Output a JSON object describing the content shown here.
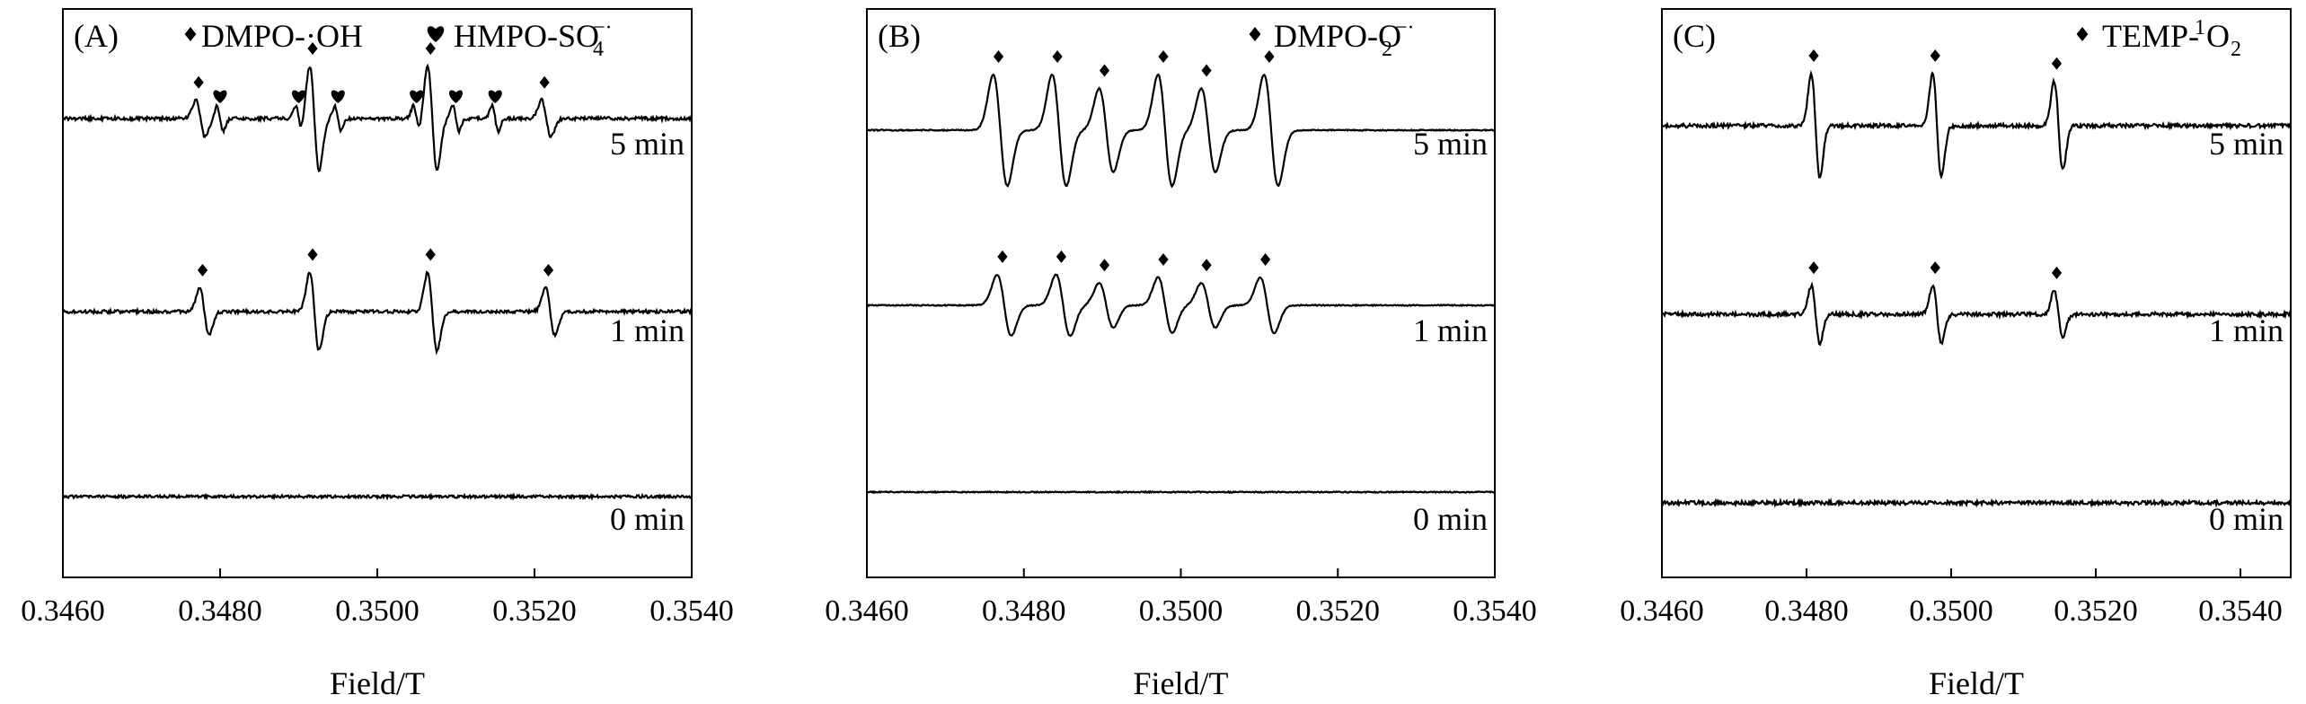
{
  "chart_data": [
    {
      "type": "line",
      "panel_label": "(A)",
      "xlabel": "Field/T",
      "ylabel": "",
      "xlim": [
        0.346,
        0.354
      ],
      "xticks": [
        "0.3460",
        "0.3480",
        "0.3500",
        "0.3520",
        "0.3540"
      ],
      "grid": false,
      "legend": {
        "placement": "top-right",
        "entries": [
          {
            "marker": "diamond",
            "text": "DMPO-·OH"
          },
          {
            "marker": "heart",
            "text": "HMPO-SO",
            "sub": "4",
            "sup": "−·"
          }
        ]
      },
      "series": [
        {
          "name": "5 min",
          "baseline": 0.78,
          "peaks": [
            0.34775,
            0.3492,
            0.3507,
            0.35215
          ],
          "peak_heights": [
            0.35,
            1.0,
            1.0,
            0.35
          ],
          "heart_peaks": [
            0.348,
            0.349,
            0.3495,
            0.3505,
            0.351,
            0.3515
          ],
          "noise": 0.06
        },
        {
          "name": "1 min",
          "baseline": 0.46,
          "peaks": [
            0.3478,
            0.3492,
            0.3507,
            0.3522
          ],
          "peak_heights": [
            0.45,
            0.75,
            0.75,
            0.45
          ],
          "heart_peaks": [],
          "noise": 0.06
        },
        {
          "name": "0 min",
          "baseline": 0.14,
          "peaks": [],
          "peak_heights": [],
          "heart_peaks": [],
          "noise": 0.05
        }
      ]
    },
    {
      "type": "line",
      "panel_label": "(B)",
      "xlabel": "Field/T",
      "ylabel": "",
      "xlim": [
        0.346,
        0.354
      ],
      "xticks": [
        "0.3460",
        "0.3480",
        "0.3500",
        "0.3520",
        "0.3540"
      ],
      "grid": false,
      "legend": {
        "placement": "top-right",
        "entries": [
          {
            "marker": "diamond",
            "text": "DMPO-O",
            "sub": "2",
            "sup": "−·"
          }
        ]
      },
      "series": [
        {
          "name": "5 min",
          "baseline": 0.77,
          "peaks": [
            0.3477,
            0.34845,
            0.34905,
            0.3498,
            0.35035,
            0.35115
          ],
          "peak_heights": [
            1.0,
            1.0,
            0.75,
            1.0,
            0.75,
            1.0
          ],
          "heart_peaks": [],
          "noise": 0.02
        },
        {
          "name": "1 min",
          "baseline": 0.46,
          "peaks": [
            0.34775,
            0.3485,
            0.34905,
            0.3498,
            0.35035,
            0.3511
          ],
          "peak_heights": [
            0.55,
            0.55,
            0.4,
            0.5,
            0.4,
            0.5
          ],
          "heart_peaks": [],
          "noise": 0.02
        },
        {
          "name": "0 min",
          "baseline": 0.14,
          "peaks": [],
          "peak_heights": [],
          "heart_peaks": [],
          "noise": 0.02
        }
      ]
    },
    {
      "type": "line",
      "panel_label": "(C)",
      "xlabel": "Field/T",
      "ylabel": "",
      "xlim": [
        0.346,
        0.3548
      ],
      "xticks": [
        "0.3460",
        "0.3480",
        "0.3500",
        "0.3520",
        "0.3540"
      ],
      "grid": false,
      "legend": {
        "placement": "top-right",
        "entries": [
          {
            "marker": "diamond",
            "text": "TEMP-",
            "sup_before": "1",
            "text2": "O",
            "sub": "2"
          }
        ]
      },
      "series": [
        {
          "name": "5 min",
          "baseline": 0.77,
          "peaks": [
            0.34815,
            0.34985,
            0.35155
          ],
          "peak_heights": [
            1.0,
            1.0,
            0.85
          ],
          "heart_peaks": [],
          "noise": 0.07
        },
        {
          "name": "1 min",
          "baseline": 0.45,
          "peaks": [
            0.34815,
            0.34985,
            0.35155
          ],
          "peak_heights": [
            0.55,
            0.55,
            0.45
          ],
          "heart_peaks": [],
          "noise": 0.07
        },
        {
          "name": "0 min",
          "baseline": 0.12,
          "peaks": [],
          "peak_heights": [],
          "heart_peaks": [],
          "noise": 0.07
        }
      ]
    }
  ]
}
